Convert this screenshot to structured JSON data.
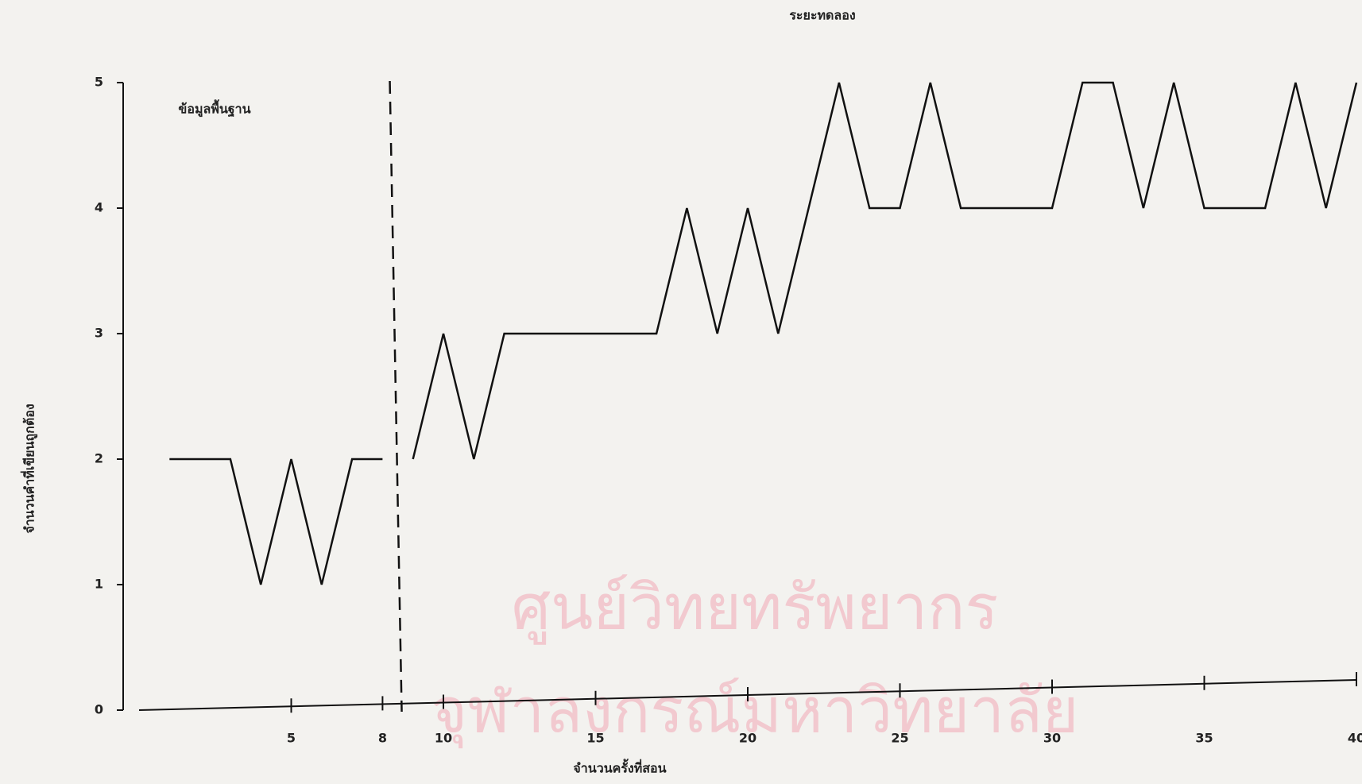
{
  "chart_data": {
    "type": "line",
    "title": "ระยะทดลอง",
    "annotations": [
      "ข้อมูลพื้นฐาน"
    ],
    "watermark": [
      "ศูนย์วิทยทรัพยากร",
      "จุฬาลงกรณ์มหาวิทยาลัย"
    ],
    "x_label": "จำนวนครั้งที่สอน",
    "y_label": "จำนวนคำที่เขียนถูกต้อง",
    "xlim": [
      0,
      40
    ],
    "xticks": [
      5,
      8,
      10,
      15,
      20,
      25,
      30,
      35,
      40
    ],
    "ylim": [
      0,
      5
    ],
    "yticks": [
      0,
      1,
      2,
      3,
      4,
      5
    ],
    "phase_change_x": 8.5,
    "color": "#111111",
    "series": [
      {
        "x": [
          1,
          2,
          3,
          4,
          5,
          6,
          7,
          8
        ],
        "values": [
          2,
          2,
          2,
          1,
          2,
          1,
          2,
          2
        ]
      },
      {
        "x": [
          9,
          10,
          11,
          12,
          13,
          14,
          15,
          16,
          17,
          18,
          19,
          20,
          21,
          22,
          23,
          24,
          25,
          26,
          27,
          28,
          29,
          30,
          31,
          32,
          33,
          34,
          35,
          36,
          37,
          38,
          39,
          40
        ],
        "values": [
          2,
          3,
          2,
          3,
          3,
          3,
          3,
          3,
          3,
          4,
          3,
          4,
          3,
          4,
          5,
          4,
          4,
          5,
          4,
          4,
          4,
          4,
          5,
          5,
          4,
          5,
          4,
          4,
          4,
          5,
          4,
          5
        ]
      }
    ]
  }
}
